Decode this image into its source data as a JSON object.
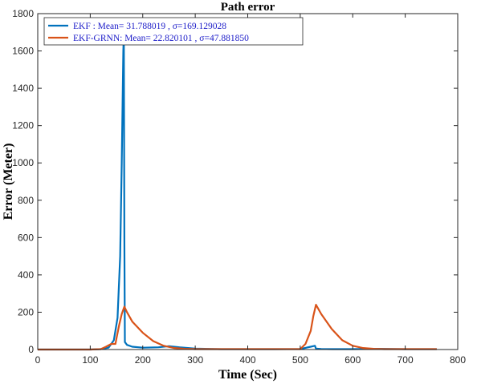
{
  "chart_data": {
    "type": "line",
    "title": "Path error",
    "xlabel": "Time (Sec)",
    "ylabel": "Error (Meter)",
    "xlim": [
      0,
      800
    ],
    "ylim": [
      0,
      1800
    ],
    "xticks": [
      0,
      100,
      200,
      300,
      400,
      500,
      600,
      700,
      800
    ],
    "yticks": [
      0,
      200,
      400,
      600,
      800,
      1000,
      1200,
      1400,
      1600,
      1800
    ],
    "grid": false,
    "legend_position": "top-left",
    "series": [
      {
        "name": "EKF",
        "legend_label": "EKF : Mean= 31.788019 , σ=169.129028",
        "color": "#0072BD",
        "x": [
          0,
          100,
          120,
          135,
          145,
          152,
          157,
          160,
          162,
          163,
          164,
          165,
          166,
          170,
          180,
          200,
          230,
          250,
          270,
          300,
          350,
          400,
          450,
          500,
          520,
          528,
          530,
          540,
          560,
          600,
          650,
          700,
          760
        ],
        "y": [
          0,
          0,
          2,
          10,
          50,
          170,
          500,
          1000,
          1400,
          1600,
          1690,
          600,
          40,
          25,
          15,
          10,
          12,
          18,
          12,
          5,
          2,
          2,
          2,
          3,
          15,
          20,
          5,
          3,
          2,
          2,
          4,
          2,
          2
        ]
      },
      {
        "name": "EKF-GRNN",
        "legend_label": "EKF-GRNN: Mean= 22.820101 , σ=47.881850",
        "color": "#D95319",
        "x": [
          0,
          100,
          120,
          130,
          140,
          148,
          150,
          155,
          160,
          165,
          170,
          180,
          200,
          220,
          240,
          260,
          280,
          300,
          350,
          400,
          450,
          500,
          510,
          520,
          525,
          530,
          540,
          560,
          580,
          600,
          620,
          640,
          660,
          700,
          760
        ],
        "y": [
          0,
          0,
          2,
          15,
          30,
          30,
          60,
          130,
          190,
          230,
          200,
          150,
          90,
          45,
          20,
          8,
          4,
          2,
          2,
          2,
          2,
          2,
          30,
          100,
          180,
          240,
          190,
          110,
          50,
          20,
          8,
          4,
          2,
          2,
          2
        ]
      }
    ]
  }
}
